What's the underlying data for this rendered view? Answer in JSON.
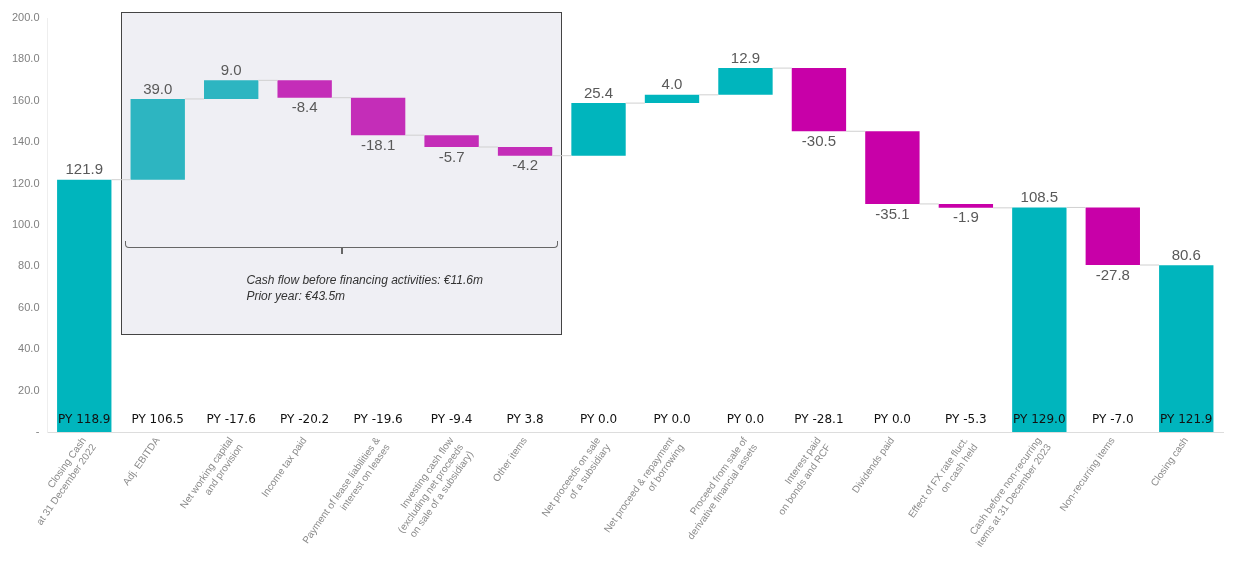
{
  "chart_data": {
    "type": "bar",
    "categories": [
      "Closing Cash\nat 31 December 2022",
      "Adj. EBITDA",
      "Net working capital\nand provision",
      "Income tax paid",
      "Payment of lease liabilities &\ninterest on leases",
      "Investing cash flow\n(excluding net proceeds\non sale of a subsidiary)",
      "Other items",
      "Net proceeds on sale\nof a subsidiary",
      "Net proceed & repayment\nof borrowing",
      "Proceed from sale of\nderivative financial assets",
      "Interest paid\non bonds and RCF",
      "Dividends paid",
      "Effect of FX rate fluct.\non cash held",
      "Cash before non-recurring\nitems at 31 December 2023",
      "Non-recurring items",
      "Closing cash"
    ],
    "values": [
      121.9,
      39.0,
      9.0,
      -8.4,
      -18.1,
      -5.7,
      -4.2,
      25.4,
      4.0,
      12.9,
      -30.5,
      -35.1,
      -1.9,
      108.5,
      -27.8,
      80.6
    ],
    "base": [
      0,
      121.9,
      160.9,
      169.9,
      161.5,
      143.4,
      137.7,
      133.5,
      158.9,
      162.9,
      175.8,
      145.3,
      110.2,
      0,
      108.5,
      0
    ],
    "colors": [
      "#00b5bd",
      "#2db5c1",
      "#2db5c1",
      "#c42db8",
      "#c42db8",
      "#c42db8",
      "#c42db8",
      "#00b5bd",
      "#00b5bd",
      "#00b5bd",
      "#c800a8",
      "#c800a8",
      "#c800a8",
      "#00b5bd",
      "#c800a8",
      "#00b5bd"
    ],
    "value_labels": [
      "121.9",
      "39.0",
      "9.0",
      "-8.4",
      "-18.1",
      "-5.7",
      "-4.2",
      "25.4",
      "4.0",
      "12.9",
      "-30.5",
      "-35.1",
      "-1.9",
      "108.5",
      "-27.8",
      "80.6"
    ],
    "ylim": [
      0,
      200
    ],
    "yticks": [
      {
        "value": 0,
        "label": "-"
      },
      {
        "value": 20,
        "label": "20.0"
      },
      {
        "value": 40,
        "label": "40.0"
      },
      {
        "value": 60,
        "label": "60.0"
      },
      {
        "value": 80,
        "label": "80.0"
      },
      {
        "value": 100,
        "label": "100.0"
      },
      {
        "value": 120,
        "label": "120.0"
      },
      {
        "value": 140,
        "label": "140.0"
      },
      {
        "value": 160,
        "label": "160.0"
      },
      {
        "value": 180,
        "label": "180.0"
      },
      {
        "value": 200,
        "label": "200.0"
      }
    ],
    "grid": false,
    "legend": false,
    "annotations": [
      "PY 118.9",
      "PY 106.5",
      "PY -17.6",
      "PY -20.2",
      "PY -19.6",
      "PY -9.4",
      "PY 3.8",
      "PY 0.0",
      "PY 0.0",
      "PY 0.0",
      "PY -28.1",
      "PY 0.0",
      "PY -5.3",
      "PY 129.0",
      "PY -7.0",
      "PY 121.9",
      "Cash flow before financing activities: €11.6m",
      "Prior year: €43.5m"
    ]
  }
}
